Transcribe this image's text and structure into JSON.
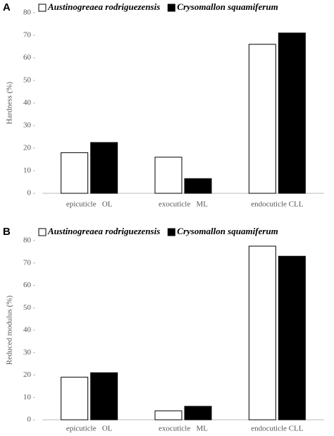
{
  "chart_data": [
    {
      "type": "bar",
      "panel_label": "A",
      "ylabel": "Hardness (%)",
      "categories": [
        "epicuticle   OL",
        "exocuticle   ML",
        "endocuticle CLL"
      ],
      "series": [
        {
          "name": "Austinogreaea rodriguezensis",
          "color": "#ffffff",
          "values": [
            18,
            16,
            66
          ]
        },
        {
          "name": "Crysomallon squamiferum",
          "color": "#000000",
          "values": [
            22.5,
            6.5,
            71
          ]
        }
      ],
      "ylim": [
        0,
        80
      ],
      "yticks": [
        0,
        10,
        20,
        30,
        40,
        50,
        60,
        70,
        80
      ],
      "grid": false
    },
    {
      "type": "bar",
      "panel_label": "B",
      "ylabel": "Reduced modulus (%)",
      "categories": [
        "epicuticle   OL",
        "exocuticle   ML",
        "endocuticle CLL"
      ],
      "series": [
        {
          "name": "Austinogreaea rodriguezensis",
          "color": "#ffffff",
          "values": [
            19,
            4,
            77.5
          ]
        },
        {
          "name": "Crysomallon squamiferum",
          "color": "#000000",
          "values": [
            21,
            6,
            73
          ]
        }
      ],
      "ylim": [
        0,
        80
      ],
      "yticks": [
        0,
        10,
        20,
        30,
        40,
        50,
        60,
        70,
        80
      ],
      "grid": false
    }
  ]
}
